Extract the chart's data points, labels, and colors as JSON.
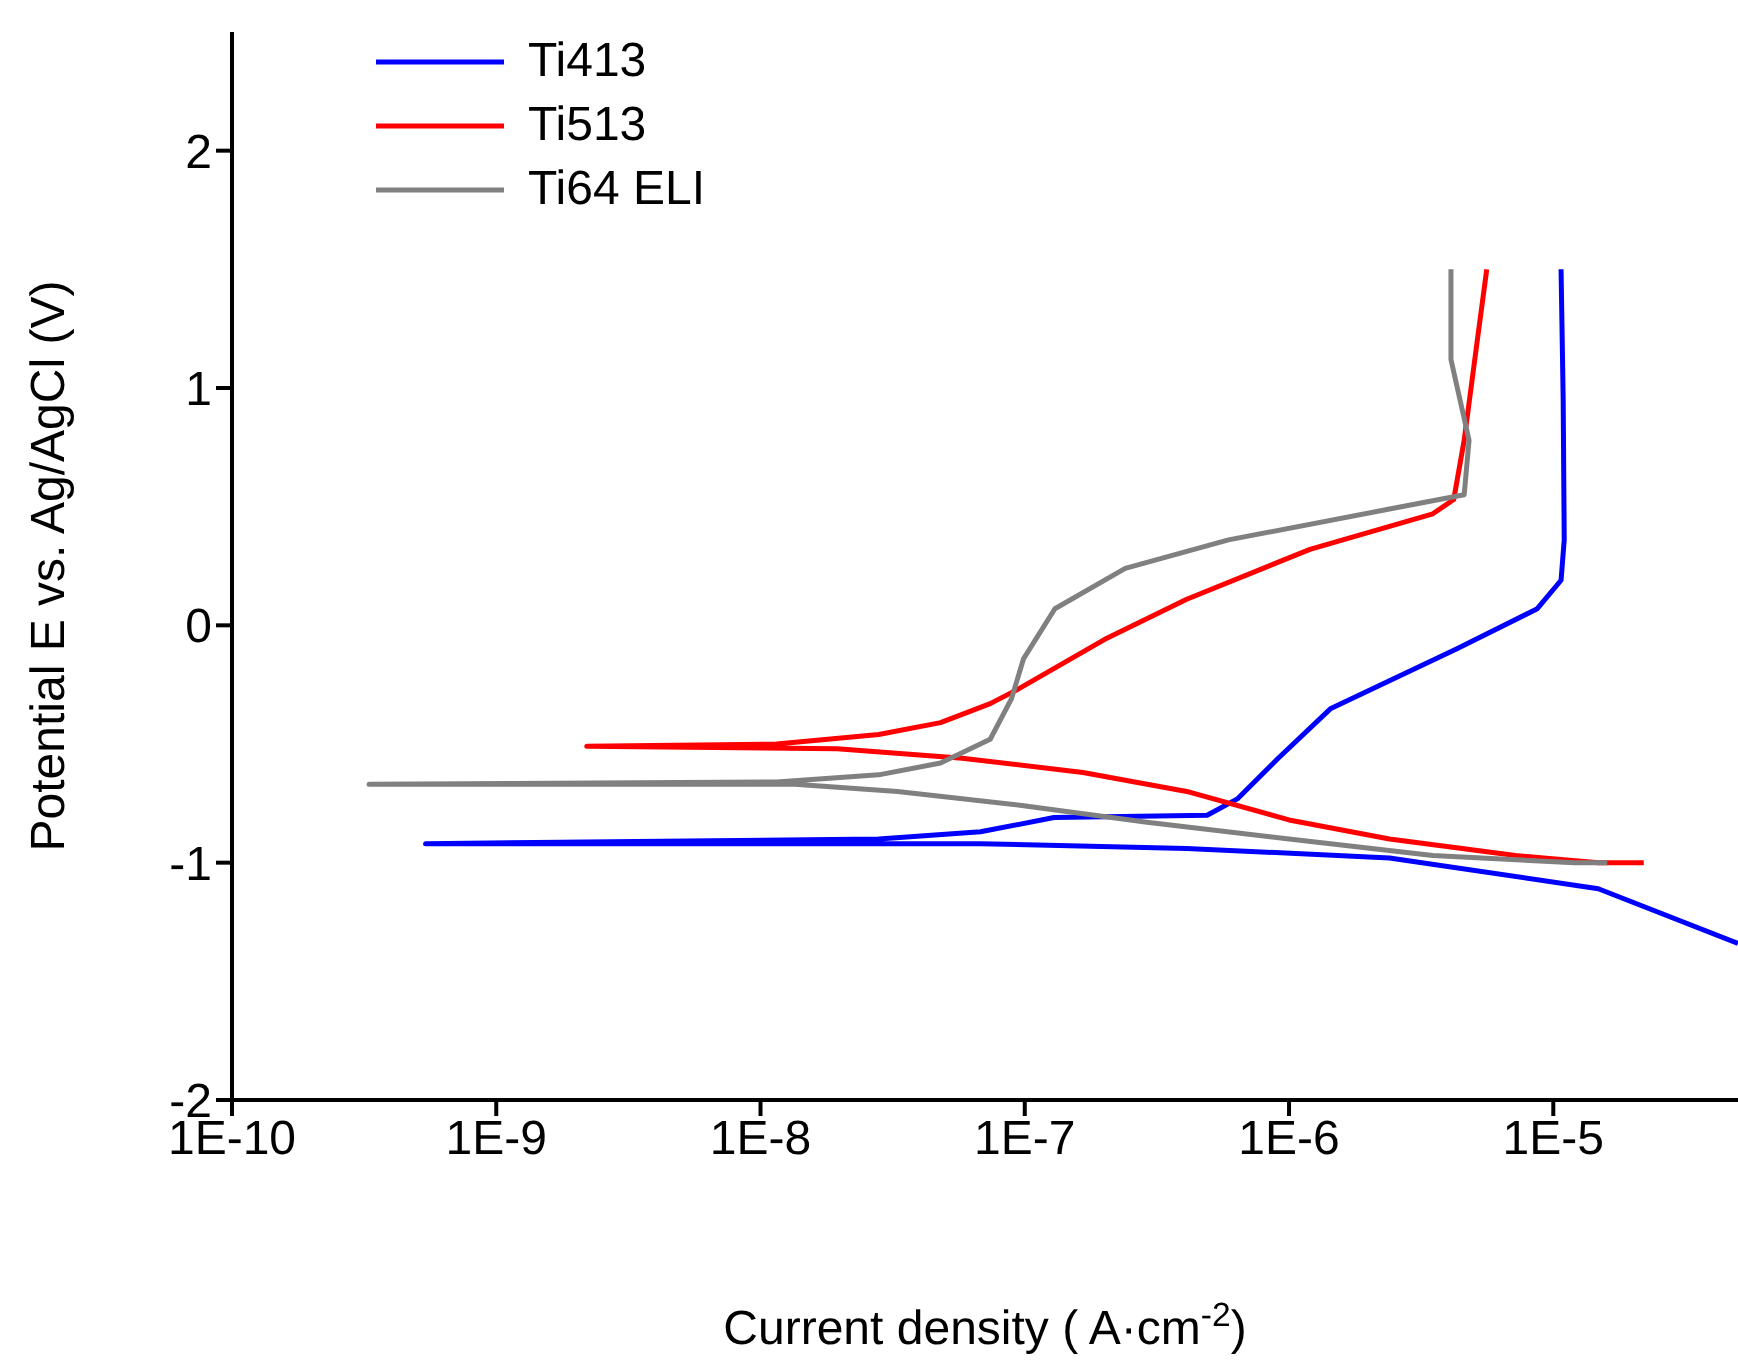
{
  "chart_data": {
    "type": "line",
    "xlabel": "Current density ( A·cm$^{-2}$)",
    "ylabel": "Potential E vs. Ag/AgCl (V)",
    "log": "x",
    "xlim": [
      1e-10,
      5e-05
    ],
    "xticks": [
      {
        "value": 1e-10,
        "label": "1E-10"
      },
      {
        "value": 1e-09,
        "label": "1E-9"
      },
      {
        "value": 1e-08,
        "label": "1E-8"
      },
      {
        "value": 1e-07,
        "label": "1E-7"
      },
      {
        "value": 1e-06,
        "label": "1E-6"
      },
      {
        "value": 1e-05,
        "label": "1E-5"
      }
    ],
    "ylim": [
      -2,
      2.5
    ],
    "yticks": [
      -2,
      -1,
      0,
      1,
      2
    ],
    "grid": false,
    "legend": "top left",
    "series": [
      {
        "name": "Ti413",
        "color": "#0000ff",
        "x": [
          5e-05,
          1.48e-05,
          2.4e-06,
          4.1e-07,
          6.8e-08,
          1.15e-08,
          5.4e-10,
          2.8e-08,
          6.8e-08,
          1.29e-07,
          4.9e-07,
          6.4e-07,
          9.1e-07,
          1.44e-06,
          4.3e-06,
          8.7e-06,
          1.07e-05,
          1.1e-05,
          1.09e-05,
          1.07e-05
        ],
        "values": [
          -1.34,
          -1.11,
          -0.98,
          -0.94,
          -0.92,
          -0.92,
          -0.92,
          -0.9,
          -0.87,
          -0.81,
          -0.8,
          -0.73,
          -0.56,
          -0.35,
          -0.1,
          0.07,
          0.19,
          0.36,
          0.95,
          1.5
        ]
      },
      {
        "name": "Ti513",
        "color": "#ff0000",
        "x": [
          2.2e-05,
          1.48e-05,
          7.2e-06,
          2.4e-06,
          1e-06,
          4.1e-07,
          1.66e-07,
          5.8e-08,
          1.95e-08,
          2.2e-09,
          1.15e-08,
          2.8e-08,
          4.8e-08,
          7.4e-08,
          9.4e-08,
          2e-07,
          4.1e-07,
          1.2e-06,
          3.5e-06,
          4.2e-06,
          4.6e-06,
          5.1e-06,
          5.6e-06
        ],
        "values": [
          -1.0,
          -1.0,
          -0.97,
          -0.9,
          -0.82,
          -0.7,
          -0.62,
          -0.56,
          -0.52,
          -0.51,
          -0.5,
          -0.46,
          -0.41,
          -0.33,
          -0.27,
          -0.06,
          0.11,
          0.32,
          0.47,
          0.53,
          0.78,
          1.16,
          1.5
        ]
      },
      {
        "name": "Ti64 ELI",
        "color": "#808080",
        "x": [
          1.6e-05,
          1.2e-05,
          3.5e-06,
          1e-06,
          2.9e-07,
          9.9e-08,
          3.3e-08,
          1.35e-08,
          3.3e-10,
          1.15e-08,
          2.8e-08,
          4.8e-08,
          7.4e-08,
          8.9e-08,
          9.9e-08,
          1.3e-07,
          2.4e-07,
          5.9e-07,
          2.4e-06,
          4.6e-06,
          4.8e-06,
          4.1e-06,
          4.1e-06
        ],
        "values": [
          -1.0,
          -1.0,
          -0.97,
          -0.9,
          -0.83,
          -0.76,
          -0.7,
          -0.67,
          -0.67,
          -0.66,
          -0.63,
          -0.58,
          -0.48,
          -0.31,
          -0.14,
          0.07,
          0.24,
          0.36,
          0.49,
          0.55,
          0.78,
          1.12,
          1.5
        ]
      }
    ]
  }
}
